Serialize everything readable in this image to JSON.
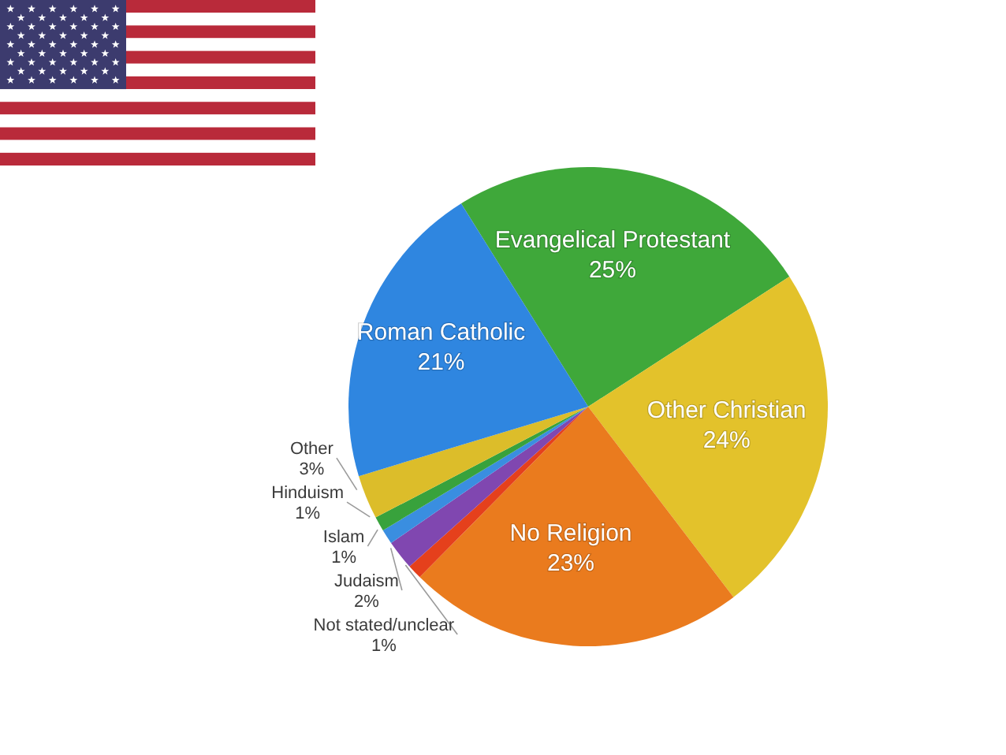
{
  "chart_data": {
    "type": "pie",
    "categories": [
      "Evangelical Protestant",
      "Other Christian",
      "No Religion",
      "Not stated/unclear",
      "Judaism",
      "Islam",
      "Hinduism",
      "Other",
      "Roman Catholic"
    ],
    "values": [
      25,
      24,
      23,
      1,
      2,
      1,
      1,
      3,
      21
    ],
    "value_labels": [
      "25%",
      "24%",
      "23%",
      "1%",
      "2%",
      "1%",
      "1%",
      "3%",
      "21%"
    ],
    "colors": [
      "#3fa83a",
      "#e3c22b",
      "#ea7b1e",
      "#e5401c",
      "#8047b0",
      "#3a8ee0",
      "#38a23c",
      "#dcbd2a",
      "#2f86e0"
    ]
  }
}
